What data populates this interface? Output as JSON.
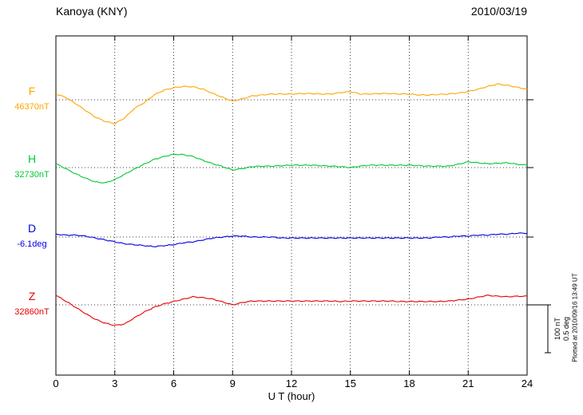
{
  "header": {
    "station": "Kanoya (KNY)",
    "date": "2010/03/19"
  },
  "axis": {
    "x_title": "U T (hour)",
    "x_ticks": [
      0,
      3,
      6,
      9,
      12,
      15,
      18,
      21,
      24
    ],
    "x_range": [
      0,
      24
    ],
    "gridline_hours": [
      3,
      6,
      9,
      12,
      15,
      18,
      21
    ]
  },
  "scale_bar": {
    "nt_label": "100 nT",
    "deg_label": "0.5 deg",
    "nt_span": 100,
    "deg_span": 0.5
  },
  "footer": {
    "plotted_at": "Plotted at 2010/09/16 13:49 UT"
  },
  "colors": {
    "F": "#FFA500",
    "H": "#00C832",
    "D": "#0000E6",
    "Z": "#E60000",
    "axis": "#000000"
  },
  "chart_data": {
    "type": "line",
    "title": "Kanoya (KNY) magnetogram 2010/03/19",
    "xlabel": "U T (hour)",
    "x_range": [
      0,
      24
    ],
    "grid": "dotted vertical every 3 h, dotted horizontal baseline per channel",
    "x_hours": [
      0,
      0.5,
      1,
      1.5,
      2,
      2.5,
      3,
      3.5,
      4,
      4.5,
      5,
      5.5,
      6,
      6.5,
      7,
      7.5,
      8,
      8.5,
      9,
      9.5,
      10,
      10.5,
      11,
      11.5,
      12,
      12.5,
      13,
      13.5,
      14,
      14.5,
      15,
      15.5,
      16,
      16.5,
      17,
      17.5,
      18,
      18.5,
      19,
      19.5,
      20,
      20.5,
      21,
      21.5,
      22,
      22.5,
      23,
      23.5,
      24
    ],
    "series": [
      {
        "name": "F",
        "label": "F",
        "unit": "nT",
        "baseline": 46370,
        "baseline_label": "46370nT",
        "values": [
          46382,
          46375,
          46362,
          46348,
          46334,
          46325,
          46320,
          46332,
          46352,
          46364,
          46380,
          46390,
          46395,
          46398,
          46397,
          46392,
          46383,
          46375,
          46367,
          46372,
          46378,
          46380,
          46382,
          46382,
          46382,
          46383,
          46383,
          46382,
          46382,
          46385,
          46387,
          46382,
          46382,
          46383,
          46383,
          46382,
          46382,
          46380,
          46380,
          46381,
          46382,
          46384,
          46387,
          46392,
          46398,
          46403,
          46400,
          46396,
          46392
        ]
      },
      {
        "name": "H",
        "label": "H",
        "unit": "nT",
        "baseline": 32730,
        "baseline_label": "32730nT",
        "values": [
          32738,
          32728,
          32717,
          32708,
          32700,
          32698,
          32705,
          32716,
          32727,
          32737,
          32747,
          32753,
          32758,
          32757,
          32753,
          32745,
          32738,
          32732,
          32725,
          32728,
          32732,
          32733,
          32733,
          32734,
          32735,
          32735,
          32735,
          32734,
          32733,
          32732,
          32730,
          32733,
          32735,
          32735,
          32735,
          32735,
          32735,
          32734,
          32733,
          32733,
          32733,
          32737,
          32742,
          32740,
          32738,
          32739,
          32740,
          32737,
          32735
        ]
      },
      {
        "name": "D",
        "label": "D",
        "unit": "deg",
        "baseline": -6.1,
        "baseline_label": "-6.1deg",
        "values": [
          -6.07,
          -6.08,
          -6.08,
          -6.09,
          -6.11,
          -6.13,
          -6.15,
          -6.17,
          -6.18,
          -6.19,
          -6.2,
          -6.19,
          -6.18,
          -6.16,
          -6.15,
          -6.13,
          -6.11,
          -6.1,
          -6.09,
          -6.09,
          -6.1,
          -6.1,
          -6.1,
          -6.11,
          -6.11,
          -6.11,
          -6.11,
          -6.11,
          -6.11,
          -6.11,
          -6.11,
          -6.11,
          -6.11,
          -6.11,
          -6.11,
          -6.11,
          -6.11,
          -6.11,
          -6.11,
          -6.1,
          -6.1,
          -6.09,
          -6.09,
          -6.08,
          -6.08,
          -6.07,
          -6.07,
          -6.06,
          -6.06
        ]
      },
      {
        "name": "Z",
        "label": "Z",
        "unit": "nT",
        "baseline": 32860,
        "baseline_label": "32860nT",
        "values": [
          32880,
          32868,
          32855,
          32842,
          32830,
          32822,
          32817,
          32820,
          32833,
          32845,
          32855,
          32862,
          32867,
          32872,
          32877,
          32875,
          32872,
          32866,
          32860,
          32865,
          32868,
          32868,
          32868,
          32868,
          32868,
          32868,
          32868,
          32868,
          32868,
          32867,
          32868,
          32868,
          32868,
          32868,
          32868,
          32867,
          32867,
          32867,
          32867,
          32867,
          32868,
          32870,
          32872,
          32876,
          32880,
          32878,
          32877,
          32878,
          32878
        ]
      }
    ]
  }
}
